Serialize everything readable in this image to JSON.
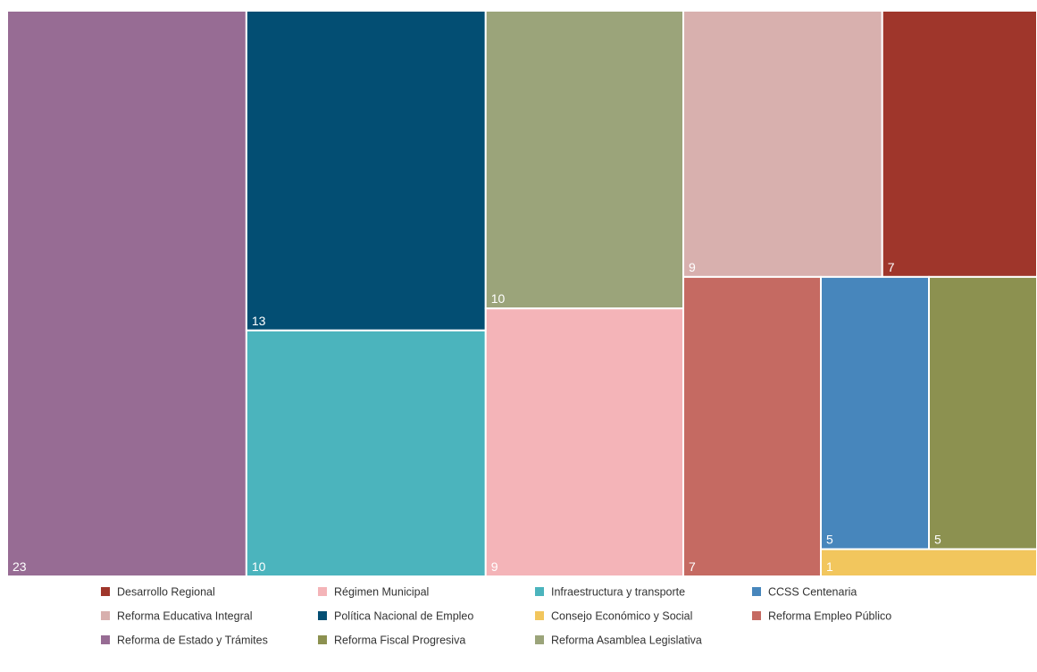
{
  "chart_data": {
    "type": "treemap",
    "title": "",
    "legend_position": "bottom",
    "items": [
      {
        "name": "Reforma de Estado y Trámites",
        "value": 23,
        "color": "#976c94"
      },
      {
        "name": "Política Nacional de Empleo",
        "value": 13,
        "color": "#034e73"
      },
      {
        "name": "Infraestructura y transporte",
        "value": 10,
        "color": "#4bb4bd"
      },
      {
        "name": "Reforma Asamblea Legislativa",
        "value": 10,
        "color": "#9ba47a"
      },
      {
        "name": "Régimen Municipal",
        "value": 9,
        "color": "#f4b4b8"
      },
      {
        "name": "Reforma Educativa Integral",
        "value": 9,
        "color": "#d8b0ae"
      },
      {
        "name": "Desarrollo Regional",
        "value": 7,
        "color": "#9f362b"
      },
      {
        "name": "Reforma Empleo Público",
        "value": 7,
        "color": "#c56a62"
      },
      {
        "name": "CCSS Centenaria",
        "value": 5,
        "color": "#4786bc"
      },
      {
        "name": "Reforma Fiscal Progresiva",
        "value": 5,
        "color": "#8c9150"
      },
      {
        "name": "Consejo Económico y Social",
        "value": 1,
        "color": "#f2c65d"
      }
    ],
    "legend_order": [
      "Desarrollo Regional",
      "Régimen Municipal",
      "Infraestructura y transporte",
      "CCSS Centenaria",
      "Reforma Educativa Integral",
      "Política Nacional de Empleo",
      "Consejo Económico y Social",
      "Reforma Empleo Público",
      "Reforma de Estado y Trámites",
      "Reforma Fiscal Progresiva",
      "Reforma Asamblea Legislativa"
    ]
  }
}
